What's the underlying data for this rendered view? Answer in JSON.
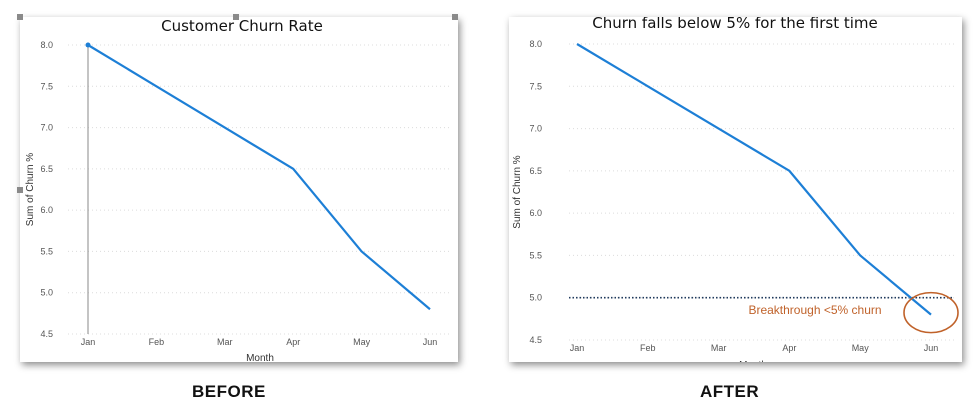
{
  "chart_data": [
    {
      "type": "line",
      "title": "Customer Churn Rate",
      "xlabel": "Month",
      "ylabel": "Sum of Churn %",
      "categories": [
        "Jan",
        "Feb",
        "Mar",
        "Apr",
        "May",
        "Jun"
      ],
      "series": [
        {
          "values": [
            8.0,
            7.5,
            7.0,
            6.5,
            5.5,
            4.8
          ]
        }
      ],
      "ylim": [
        4.5,
        8.0
      ],
      "yticks": [
        "8.0",
        "7.5",
        "7.0",
        "6.5",
        "6.0",
        "5.5",
        "5.0",
        "4.5"
      ],
      "grid": true,
      "line_color": "#1d7fd6"
    },
    {
      "type": "line",
      "title": "Churn falls below 5% for the first time",
      "xlabel": "Month",
      "ylabel": "Sum of Churn %",
      "categories": [
        "Jan",
        "Feb",
        "Mar",
        "Apr",
        "May",
        "Jun"
      ],
      "series": [
        {
          "values": [
            8.0,
            7.5,
            7.0,
            6.5,
            5.5,
            4.8
          ]
        }
      ],
      "ylim": [
        4.5,
        8.0
      ],
      "yticks": [
        "8.0",
        "7.5",
        "7.0",
        "6.5",
        "6.0",
        "5.5",
        "5.0",
        "4.5"
      ],
      "grid": true,
      "line_color": "#1d7fd6",
      "reference_line": {
        "value": 5.0,
        "style": "dotted",
        "color": "#1f3a5c"
      },
      "annotation": {
        "text": "Breakthrough <5% churn",
        "color": "#c0622a",
        "target_category": "Jun"
      }
    }
  ],
  "captions": {
    "before": "BEFORE",
    "after": "AFTER"
  }
}
